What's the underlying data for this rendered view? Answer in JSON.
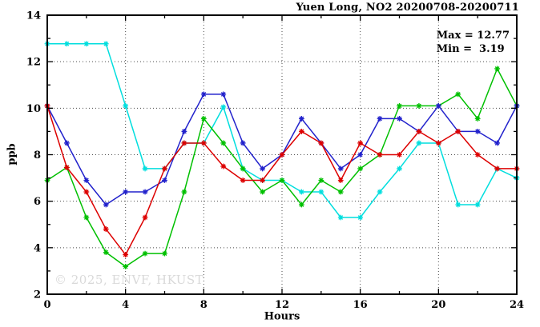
{
  "chart_data": {
    "type": "line",
    "title": "Yuen Long, NO2 20200708-20200711",
    "xlabel": "Hours",
    "ylabel": "ppb",
    "xlim": [
      0,
      24
    ],
    "ylim": [
      2,
      14
    ],
    "x_major_ticks": [
      0,
      4,
      8,
      12,
      16,
      20,
      24
    ],
    "y_major_ticks": [
      2,
      4,
      6,
      8,
      10,
      12,
      14
    ],
    "x_minor_step": 2,
    "y_minor_step": 1,
    "grid": true,
    "legend_position": "none",
    "annotations": {
      "max_label": "Max = 12.77",
      "min_label": "Min =  3.19"
    },
    "watermark": "© 2025, ENVF, HKUST",
    "x": [
      0,
      1,
      2,
      3,
      4,
      5,
      6,
      7,
      8,
      9,
      10,
      11,
      12,
      13,
      14,
      15,
      16,
      17,
      18,
      19,
      20,
      21,
      22,
      23,
      24
    ],
    "series": [
      {
        "name": "series-cyan",
        "color": "#00dede",
        "values": [
          12.77,
          12.77,
          12.77,
          12.77,
          10.1,
          7.4,
          7.4,
          8.5,
          8.5,
          10.05,
          7.4,
          6.9,
          6.9,
          6.4,
          6.4,
          5.3,
          5.3,
          6.4,
          7.4,
          8.5,
          8.5,
          5.85,
          5.85,
          7.4,
          7.0
        ]
      },
      {
        "name": "series-green",
        "color": "#00c000",
        "values": [
          6.9,
          7.45,
          5.3,
          3.8,
          3.19,
          3.75,
          3.75,
          6.4,
          9.55,
          8.5,
          7.4,
          6.4,
          6.9,
          5.85,
          6.9,
          6.4,
          7.4,
          8.0,
          10.1,
          10.1,
          10.1,
          10.6,
          9.55,
          11.7,
          10.1
        ]
      },
      {
        "name": "series-blue",
        "color": "#2222cc",
        "values": [
          10.1,
          8.5,
          6.9,
          5.85,
          6.4,
          6.4,
          6.9,
          9.0,
          10.6,
          10.6,
          8.5,
          7.4,
          8.0,
          9.55,
          8.5,
          7.4,
          8.0,
          9.55,
          9.55,
          9.0,
          10.1,
          9.0,
          9.0,
          8.5,
          10.1
        ]
      },
      {
        "name": "series-red",
        "color": "#dd0000",
        "values": [
          10.1,
          7.45,
          6.4,
          4.8,
          3.7,
          5.3,
          7.4,
          8.5,
          8.5,
          7.5,
          6.9,
          6.9,
          8.0,
          9.0,
          8.5,
          6.9,
          8.5,
          8.0,
          8.0,
          9.0,
          8.5,
          9.0,
          8.0,
          7.4,
          7.4
        ]
      }
    ]
  }
}
